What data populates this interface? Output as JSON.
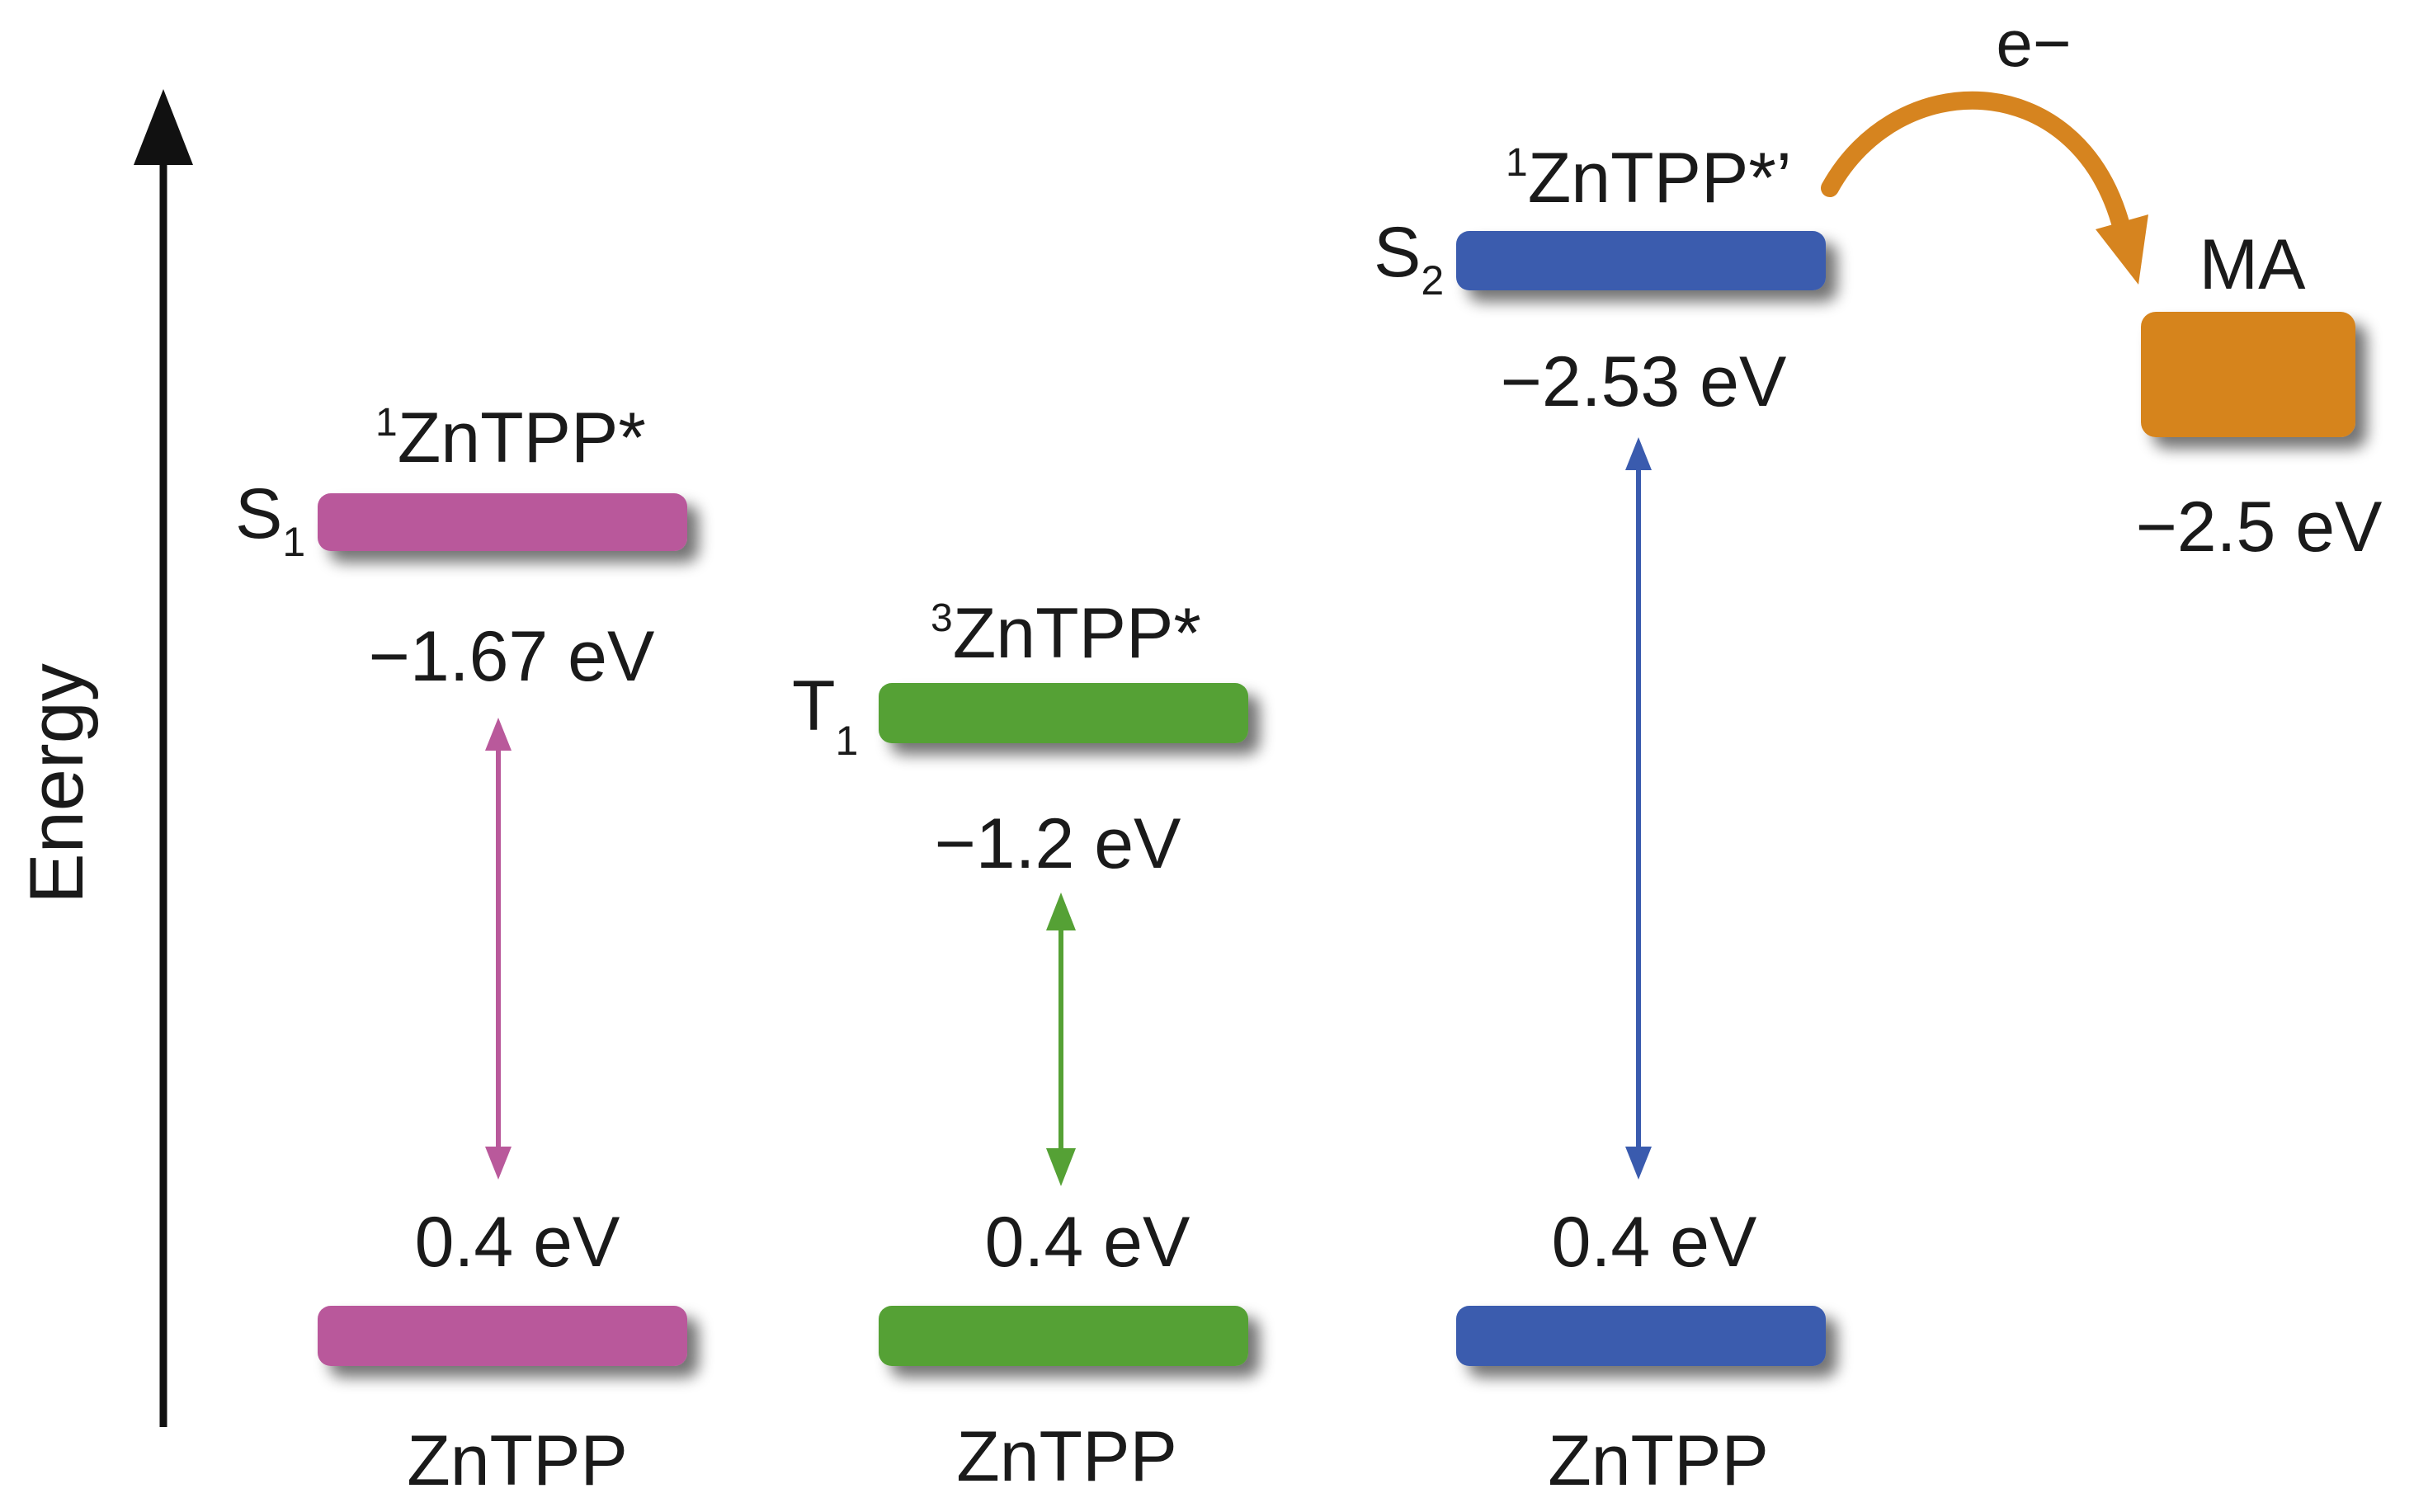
{
  "axis": {
    "label": "Energy"
  },
  "colors": {
    "singlet": "#B9599B",
    "triplet": "#55A135",
    "second_singlet": "#3A5BAE",
    "acceptor": "#D6841F",
    "axis": "#111111"
  },
  "columns": [
    {
      "state": "S",
      "state_sub": "1",
      "species_sup": "1",
      "species": "ZnTPP*",
      "excited_energy": "−1.67 eV",
      "ground_energy": "0.4 eV",
      "ground_label": "ZnTPP",
      "color": "#B9599B"
    },
    {
      "state": "T",
      "state_sub": "1",
      "species_sup": "3",
      "species": "ZnTPP*",
      "excited_energy": "−1.2 eV",
      "ground_energy": "0.4 eV",
      "ground_label": "ZnTPP",
      "color": "#55A135"
    },
    {
      "state": "S",
      "state_sub": "2",
      "species_sup": "1",
      "species": "ZnTPP*’",
      "excited_energy": "−2.53 eV",
      "ground_energy": "0.4 eV",
      "ground_label": "ZnTPP",
      "color": "#3A5BAE"
    }
  ],
  "acceptor": {
    "label": "MA",
    "energy": "−2.5 eV",
    "color": "#D6841F"
  },
  "electron_transfer": {
    "label": "e−"
  }
}
